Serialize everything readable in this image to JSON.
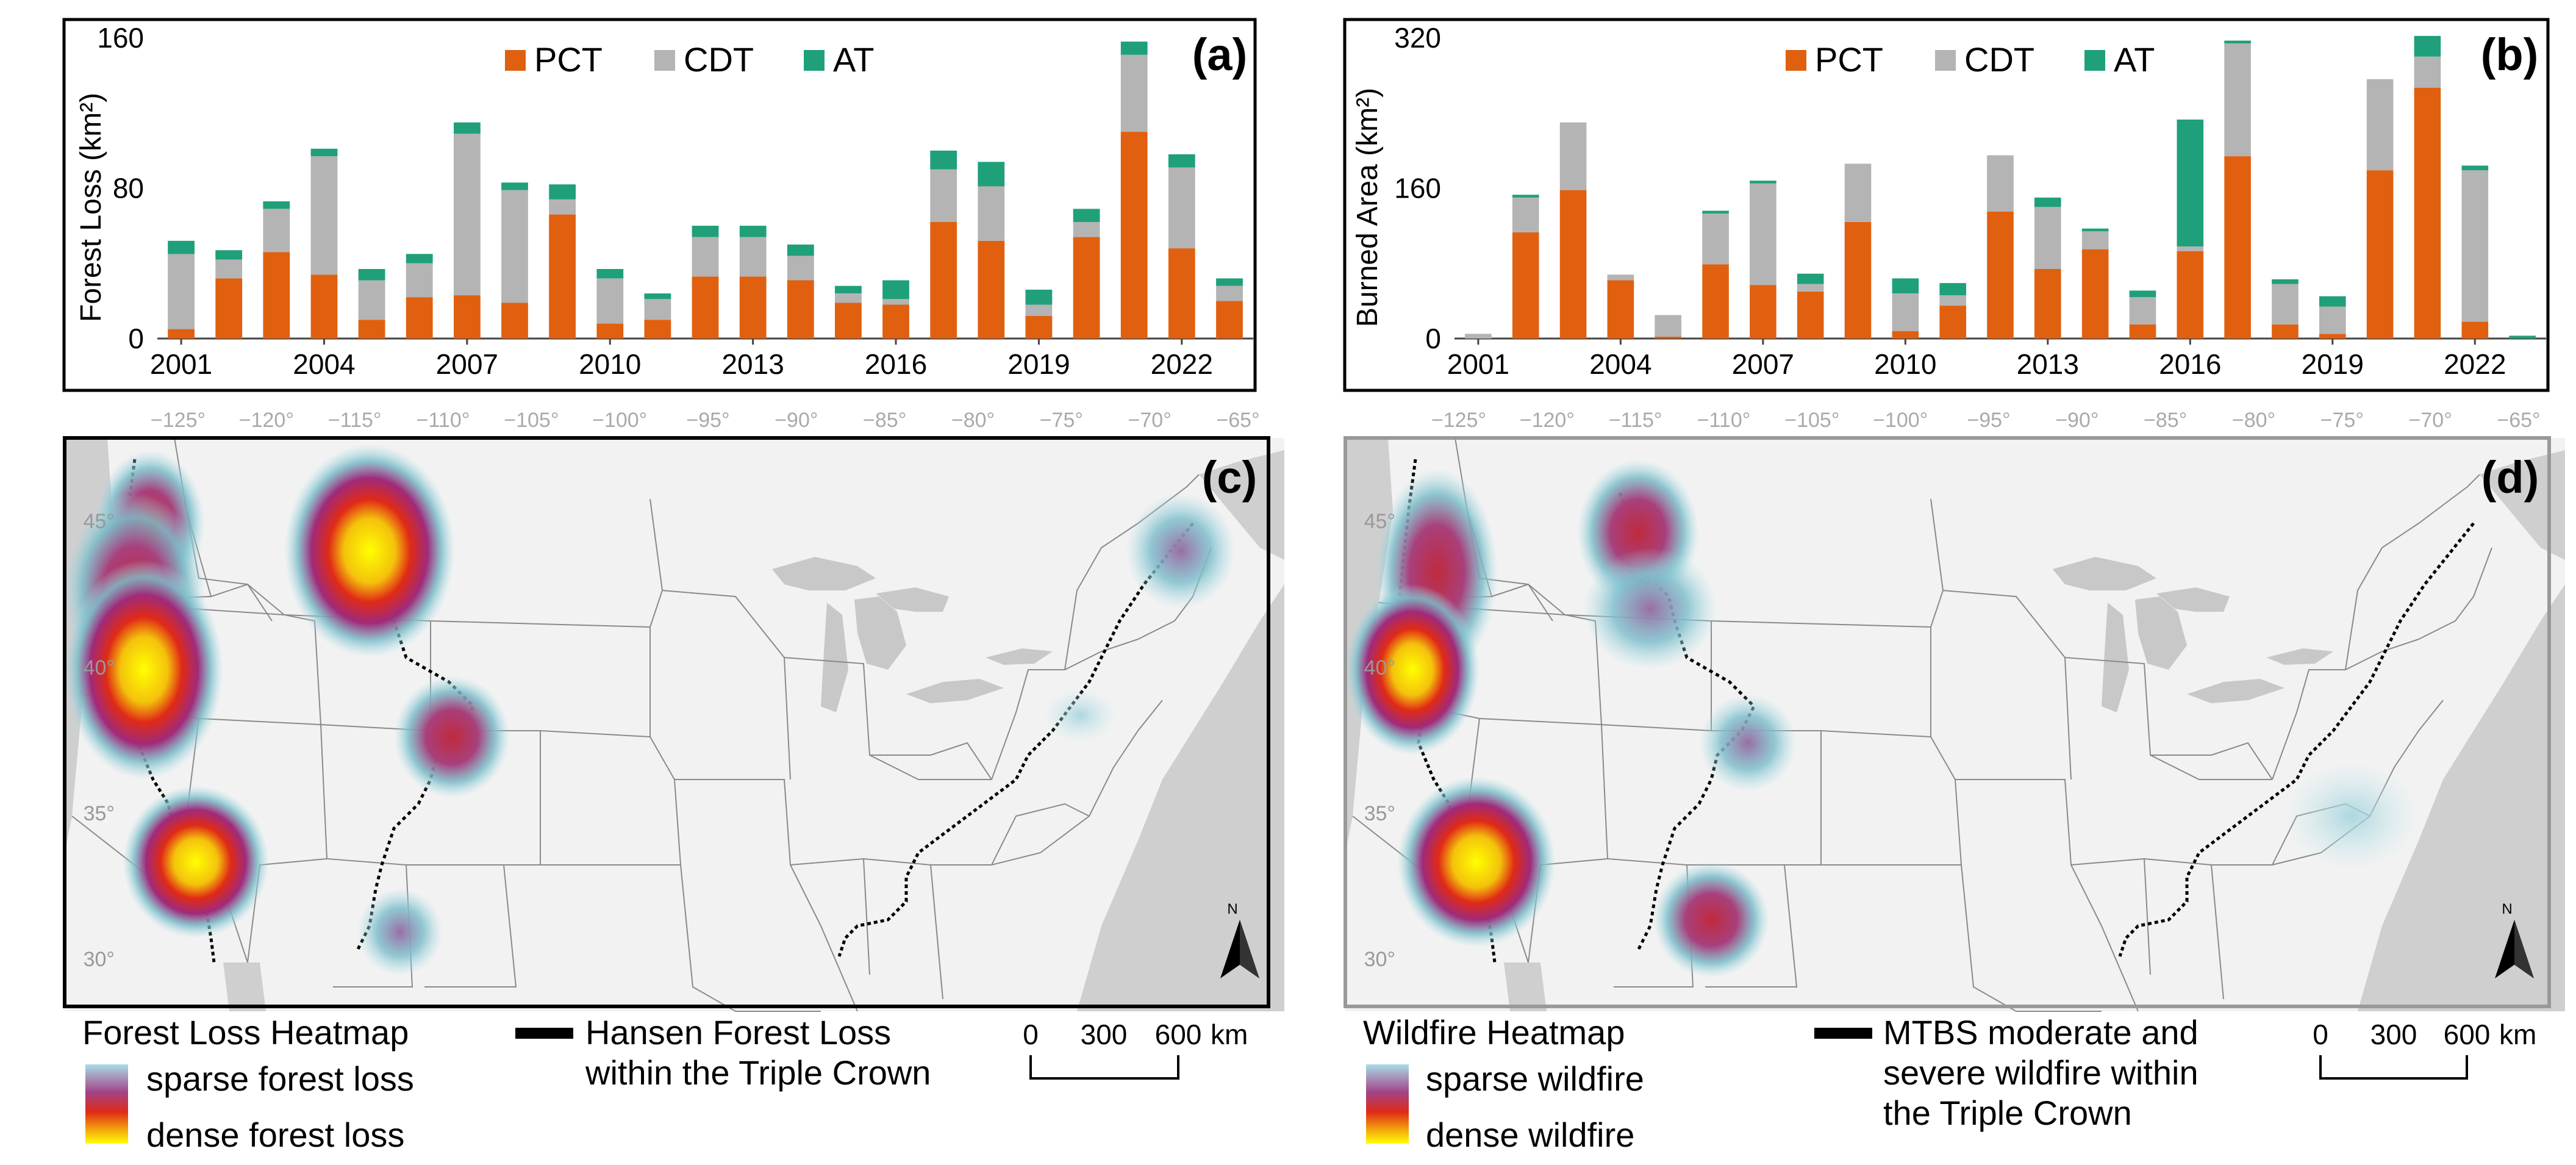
{
  "colors": {
    "PCT": "#e06010",
    "CDT": "#b4b4b4",
    "AT": "#1fa07a"
  },
  "chart_data": [
    {
      "type": "bar",
      "stacked": true,
      "panel": "(a)",
      "ylabel": "Forest Loss (km²)",
      "ylim": [
        0,
        160
      ],
      "yticks": [
        "0",
        "80",
        "160"
      ],
      "xtick_labels": [
        "2001",
        "2004",
        "2007",
        "2010",
        "2013",
        "2016",
        "2019",
        "2022"
      ],
      "categories": [
        "2001",
        "2002",
        "2003",
        "2004",
        "2005",
        "2006",
        "2007",
        "2008",
        "2009",
        "2010",
        "2011",
        "2012",
        "2013",
        "2014",
        "2015",
        "2016",
        "2017",
        "2018",
        "2019",
        "2020",
        "2021",
        "2022",
        "2023"
      ],
      "legend": [
        "PCT",
        "CDT",
        "AT"
      ],
      "series": [
        {
          "name": "PCT",
          "values": [
            5,
            32,
            46,
            34,
            10,
            22,
            23,
            19,
            66,
            8,
            10,
            33,
            33,
            31,
            19,
            18,
            62,
            52,
            12,
            54,
            110,
            48,
            20
          ]
        },
        {
          "name": "CDT",
          "values": [
            40,
            10,
            23,
            63,
            21,
            18,
            86,
            60,
            8,
            24,
            11,
            21,
            21,
            13,
            5,
            3,
            28,
            29,
            6,
            8,
            41,
            43,
            8
          ]
        },
        {
          "name": "AT",
          "values": [
            7,
            5,
            4,
            4,
            6,
            5,
            6,
            4,
            8,
            5,
            3,
            6,
            6,
            6,
            4,
            10,
            10,
            13,
            8,
            7,
            7,
            7,
            4
          ]
        }
      ]
    },
    {
      "type": "bar",
      "stacked": true,
      "panel": "(b)",
      "ylabel": "Burned Area (km²)",
      "ylim": [
        0,
        320
      ],
      "yticks": [
        "0",
        "160",
        "320"
      ],
      "xtick_labels": [
        "2001",
        "2004",
        "2007",
        "2010",
        "2013",
        "2016",
        "2019",
        "2022"
      ],
      "categories": [
        "2001",
        "2002",
        "2003",
        "2004",
        "2005",
        "2006",
        "2007",
        "2008",
        "2009",
        "2010",
        "2011",
        "2012",
        "2013",
        "2014",
        "2015",
        "2016",
        "2017",
        "2018",
        "2019",
        "2020",
        "2021",
        "2022",
        "2023"
      ],
      "legend": [
        "PCT",
        "CDT",
        "AT"
      ],
      "series": [
        {
          "name": "PCT",
          "values": [
            0,
            113,
            158,
            62,
            2,
            79,
            57,
            50,
            124,
            8,
            35,
            135,
            74,
            95,
            15,
            93,
            194,
            15,
            5,
            179,
            267,
            18,
            0
          ]
        },
        {
          "name": "CDT",
          "values": [
            5,
            37,
            72,
            6,
            23,
            54,
            108,
            8,
            62,
            40,
            11,
            60,
            66,
            19,
            29,
            5,
            120,
            43,
            29,
            97,
            33,
            161,
            0
          ]
        },
        {
          "name": "AT",
          "values": [
            0,
            3,
            0,
            0,
            0,
            3,
            3,
            11,
            0,
            16,
            13,
            0,
            10,
            3,
            7,
            135,
            3,
            5,
            11,
            0,
            22,
            5,
            3
          ]
        }
      ]
    }
  ],
  "maps": {
    "lon_labels": [
      "−125°",
      "−120°",
      "−115°",
      "−110°",
      "−105°",
      "−100°",
      "−95°",
      "−90°",
      "−85°",
      "−80°",
      "−75°",
      "−70°",
      "−65°"
    ],
    "lat_labels": [
      "45°",
      "40°",
      "35°",
      "30°"
    ],
    "c": {
      "tag": "(c)",
      "heatmap_title": "Forest Loss Heatmap",
      "sparse_label": "sparse forest loss",
      "dense_label": "dense forest loss",
      "line_legend_1": "Hansen Forest Loss",
      "line_legend_2": "within the Triple Crown"
    },
    "d": {
      "tag": "(d)",
      "heatmap_title": "Wildfire Heatmap",
      "sparse_label": "sparse wildfire",
      "dense_label": "dense wildfire",
      "line_legend_1": "MTBS moderate and",
      "line_legend_2": "severe wildfire within",
      "line_legend_3": "the Triple Crown"
    },
    "north_label": "N",
    "scale": {
      "t0": "0",
      "t1": "300",
      "t2": "600",
      "unit": "km"
    }
  }
}
